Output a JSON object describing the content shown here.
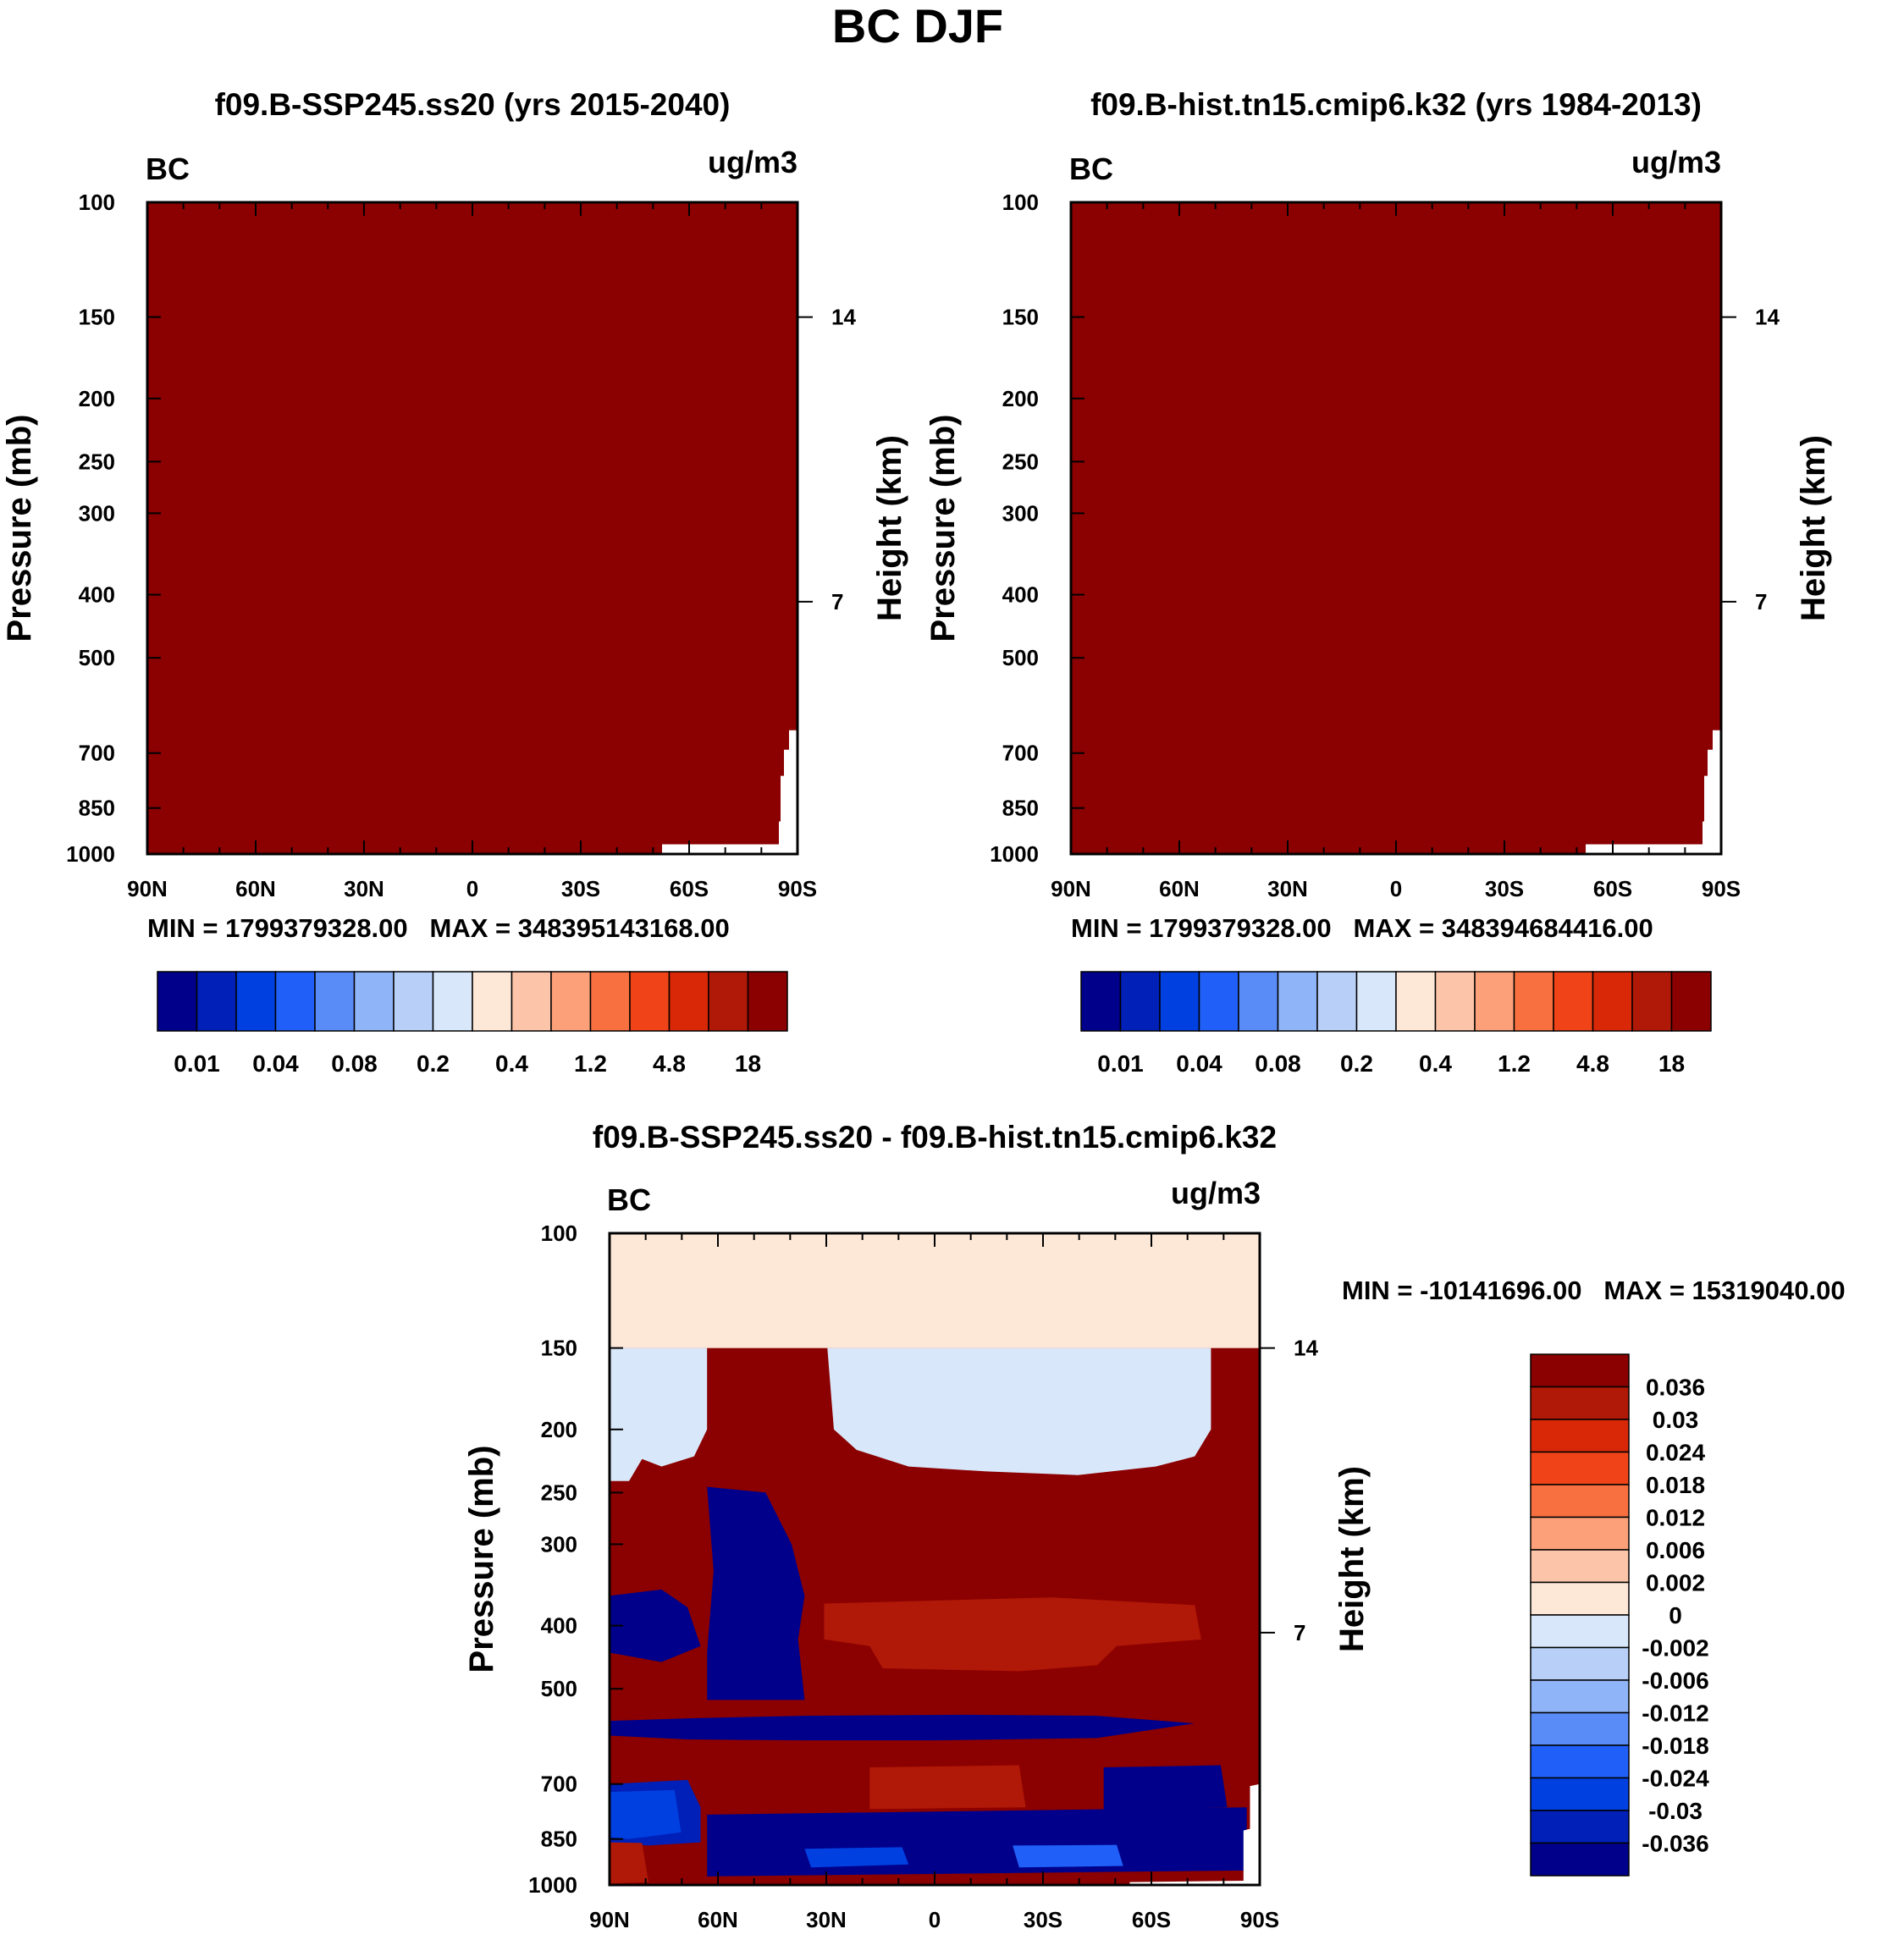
{
  "title": "BC DJF",
  "panels": [
    {
      "id": "p1",
      "subtitle": "f09.B-SSP245.ss20 (yrs 2015-2040)",
      "left_label": "BC",
      "right_label": "ug/m3",
      "ylabel": "Pressure (mb)",
      "y2label": "Height (km)",
      "stats": "MIN = 1799379328.00   MAX = 348395143168.00"
    },
    {
      "id": "p2",
      "subtitle": "f09.B-hist.tn15.cmip6.k32 (yrs 1984-2013)",
      "left_label": "BC",
      "right_label": "ug/m3",
      "ylabel": "Pressure (mb)",
      "y2label": "Height (km)",
      "stats": "MIN = 1799379328.00   MAX = 348394684416.00"
    },
    {
      "id": "p3",
      "subtitle": "f09.B-SSP245.ss20 - f09.B-hist.tn15.cmip6.k32",
      "left_label": "BC",
      "right_label": "ug/m3",
      "ylabel": "Pressure (mb)",
      "y2label": "Height (km)",
      "stats": "MIN = -10141696.00   MAX = 15319040.00"
    }
  ],
  "chart_data": [
    {
      "type": "heatmap",
      "title": "f09.B-SSP245.ss20 (yrs 2015-2040)",
      "x_ticks": [
        "90N",
        "60N",
        "30N",
        "0",
        "30S",
        "60S",
        "90S"
      ],
      "y_ticks": [
        "100",
        "150",
        "200",
        "250",
        "300",
        "400",
        "500",
        "700",
        "850",
        "1000"
      ],
      "y2_ticks": [
        "14",
        "7"
      ],
      "ylim": [
        1000,
        100
      ],
      "min": 1799379328.0,
      "max": 348395143168.0,
      "colorbar_labels": [
        "0.01",
        "0.04",
        "0.08",
        "0.2",
        "0.4",
        "1.2",
        "4.8",
        "18"
      ],
      "colorbar_colors": [
        "#00008b",
        "#0020b8",
        "#0040e0",
        "#2060f8",
        "#5a8cf8",
        "#90b4f8",
        "#b8d0f8",
        "#d8e8fa",
        "#fde8d8",
        "#fcc4a8",
        "#fba078",
        "#f87040",
        "#f04418",
        "#d82808",
        "#b01808",
        "#8b0000"
      ]
    },
    {
      "type": "heatmap",
      "title": "f09.B-hist.tn15.cmip6.k32 (yrs 1984-2013)",
      "x_ticks": [
        "90N",
        "60N",
        "30N",
        "0",
        "30S",
        "60S",
        "90S"
      ],
      "y_ticks": [
        "100",
        "150",
        "200",
        "250",
        "300",
        "400",
        "500",
        "700",
        "850",
        "1000"
      ],
      "y2_ticks": [
        "14",
        "7"
      ],
      "ylim": [
        1000,
        100
      ],
      "min": 1799379328.0,
      "max": 348394684416.0,
      "colorbar_labels": [
        "0.01",
        "0.04",
        "0.08",
        "0.2",
        "0.4",
        "1.2",
        "4.8",
        "18"
      ],
      "colorbar_colors": [
        "#00008b",
        "#0020b8",
        "#0040e0",
        "#2060f8",
        "#5a8cf8",
        "#90b4f8",
        "#b8d0f8",
        "#d8e8fa",
        "#fde8d8",
        "#fcc4a8",
        "#fba078",
        "#f87040",
        "#f04418",
        "#d82808",
        "#b01808",
        "#8b0000"
      ]
    },
    {
      "type": "heatmap",
      "title": "f09.B-SSP245.ss20 - f09.B-hist.tn15.cmip6.k32",
      "x_ticks": [
        "90N",
        "60N",
        "30N",
        "0",
        "30S",
        "60S",
        "90S"
      ],
      "y_ticks": [
        "100",
        "150",
        "200",
        "250",
        "300",
        "400",
        "500",
        "700",
        "850",
        "1000"
      ],
      "y2_ticks": [
        "14",
        "7"
      ],
      "ylim": [
        1000,
        100
      ],
      "min": -10141696.0,
      "max": 15319040.0,
      "colorbar_labels": [
        "0.036",
        "0.03",
        "0.024",
        "0.018",
        "0.012",
        "0.006",
        "0.002",
        "0",
        "-0.002",
        "-0.006",
        "-0.012",
        "-0.018",
        "-0.024",
        "-0.03",
        "-0.036"
      ],
      "colorbar_colors": [
        "#8b0000",
        "#b01808",
        "#d82808",
        "#f04418",
        "#f87040",
        "#fba078",
        "#fcc4a8",
        "#fde8d8",
        "#d8e8fa",
        "#b8d0f8",
        "#90b4f8",
        "#5a8cf8",
        "#2060f8",
        "#0040e0",
        "#0020b8",
        "#00008b"
      ]
    }
  ]
}
